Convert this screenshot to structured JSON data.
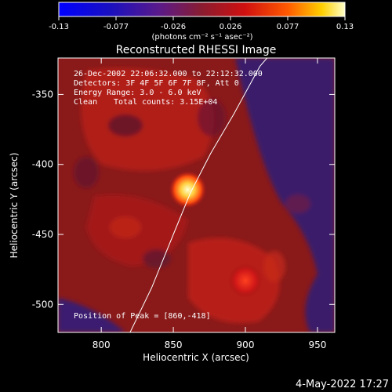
{
  "colorbar": {
    "tick_labels": [
      "-0.13",
      "-0.077",
      "-0.026",
      "0.026",
      "0.077",
      "0.13"
    ],
    "unit_label": "(photons cm⁻² s⁻¹ asec⁻²)",
    "range": [
      -0.13,
      0.13
    ]
  },
  "chart_data": {
    "type": "heatmap",
    "title": "Reconstructed RHESSI Image",
    "xlabel": "Heliocentric X (arcsec)",
    "ylabel": "Heliocentric Y (arcsec)",
    "xlim": [
      770,
      962
    ],
    "ylim": [
      -520,
      -324
    ],
    "x_ticks": [
      800,
      850,
      900,
      950
    ],
    "y_ticks": [
      -350,
      -400,
      -450,
      -500
    ],
    "colormap": "rainbow",
    "peak": {
      "x": 860,
      "y": -418,
      "value": 0.13
    },
    "secondary_source": {
      "x": 900,
      "y": -483
    },
    "limb_curve": [
      [
        820,
        -520
      ],
      [
        835,
        -488
      ],
      [
        850,
        -450
      ],
      [
        862,
        -420
      ],
      [
        876,
        -392
      ],
      [
        892,
        -364
      ],
      [
        910,
        -330
      ],
      [
        915,
        -324
      ]
    ],
    "annotations": [
      "26-Dec-2002 22:06:32.000 to 22:12:32.000",
      "Detectors: 3F 4F 5F 6F 7F 8F, Att 0",
      "Energy Range: 3.0 - 6.0 keV",
      "Clean",
      "Total counts: 3.15E+04",
      "Position of Peak = [860,-418]"
    ]
  },
  "footer": {
    "timestamp": "4-May-2022 17:27"
  }
}
